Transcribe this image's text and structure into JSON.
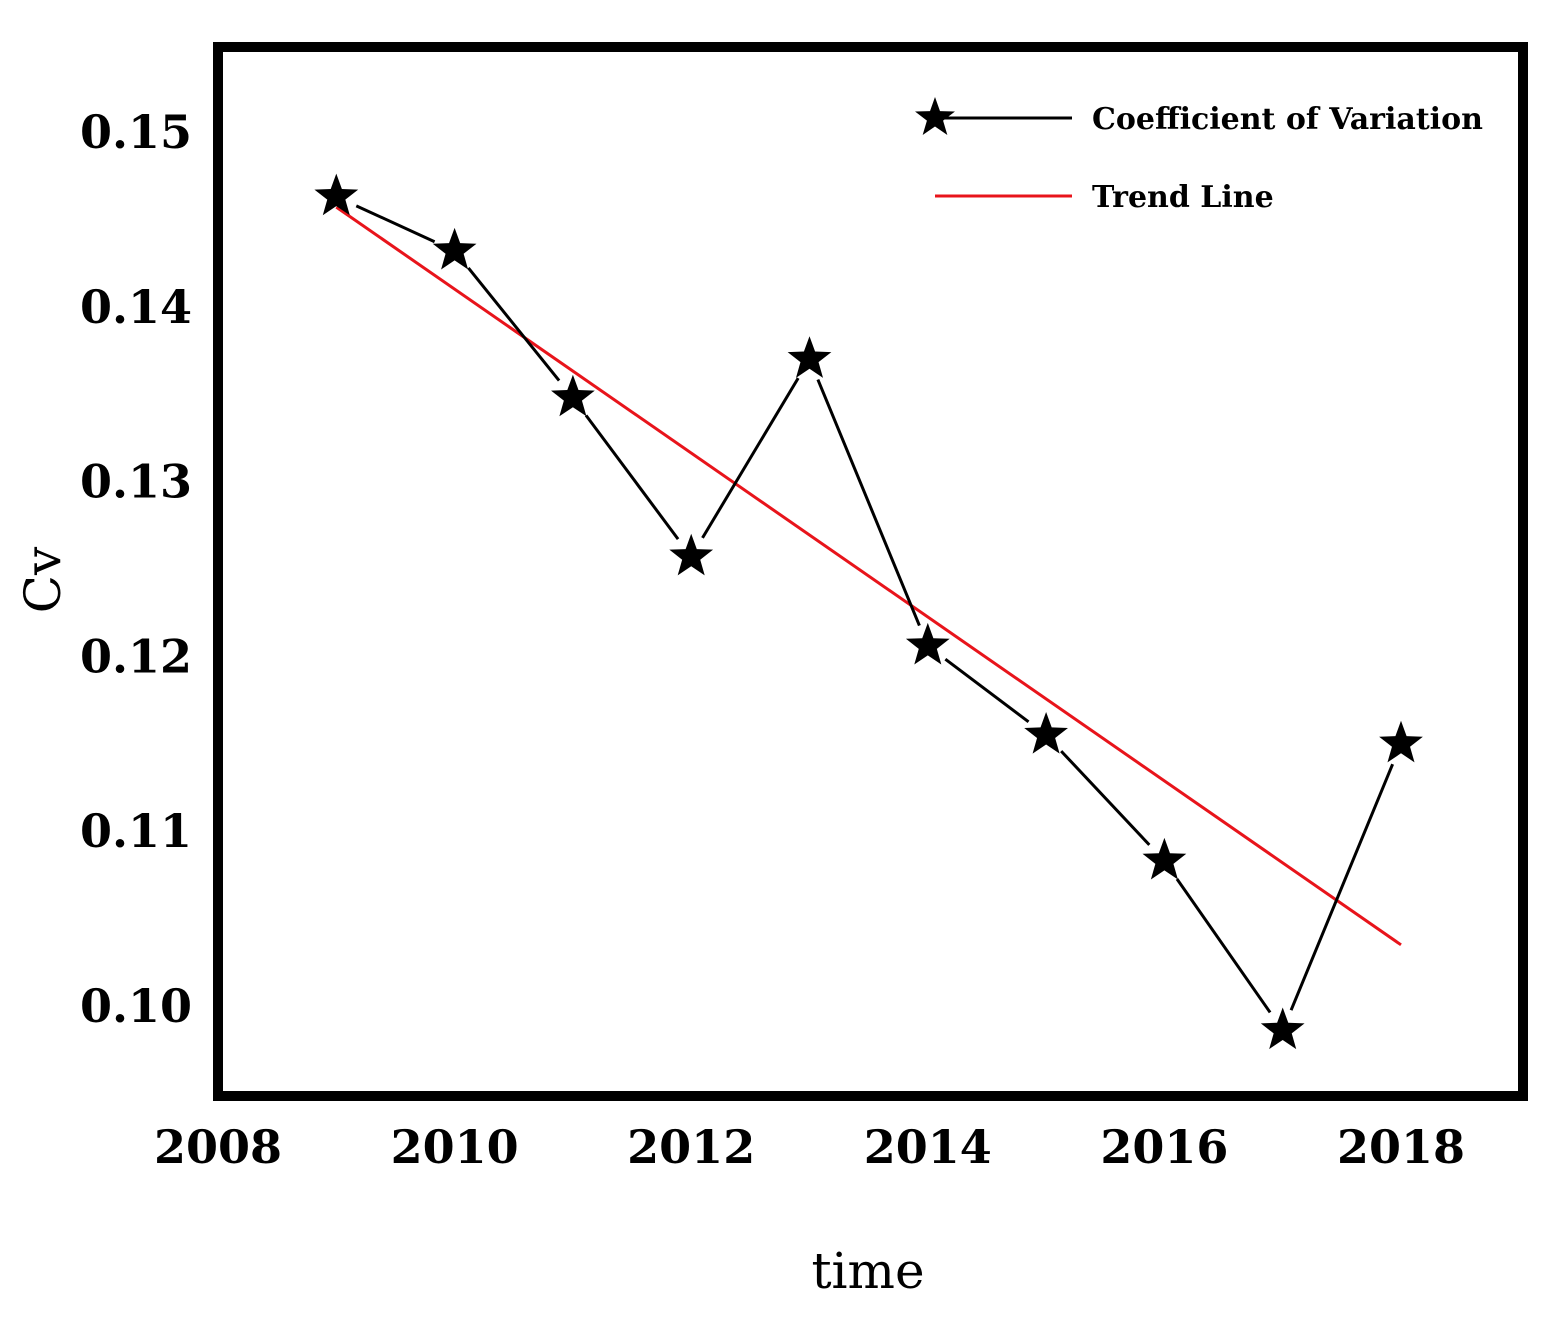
{
  "chart_data": {
    "type": "line",
    "title": "",
    "xlabel": "time",
    "ylabel": "Cv",
    "xlim": [
      2008,
      2019
    ],
    "ylim": [
      0.095,
      0.155
    ],
    "xticks": [
      2008,
      2010,
      2012,
      2014,
      2016,
      2018
    ],
    "xtick_labels": [
      "2008",
      "2010",
      "2012",
      "2014",
      "2016",
      "2018"
    ],
    "yticks": [
      0.1,
      0.11,
      0.12,
      0.13,
      0.14,
      0.15
    ],
    "ytick_labels": [
      "0.10",
      "0.11",
      "0.12",
      "0.13",
      "0.14",
      "0.15"
    ],
    "series": [
      {
        "name": "Coefficient of Variation",
        "marker": "star",
        "color": "#000000",
        "x": [
          2009,
          2010,
          2011,
          2012,
          2013,
          2014,
          2015,
          2016,
          2017,
          2018
        ],
        "values": [
          0.1463,
          0.1432,
          0.1348,
          0.1257,
          0.137,
          0.1206,
          0.1155,
          0.1083,
          0.0986,
          0.115
        ]
      },
      {
        "name": "Trend Line",
        "color": "#e8141b",
        "x": [
          2009,
          2018
        ],
        "values": [
          0.1457,
          0.1035
        ]
      }
    ],
    "legend": {
      "position": "top-right",
      "entries": [
        "Coefficient of Variation",
        "Trend Line"
      ]
    },
    "grid": false
  }
}
